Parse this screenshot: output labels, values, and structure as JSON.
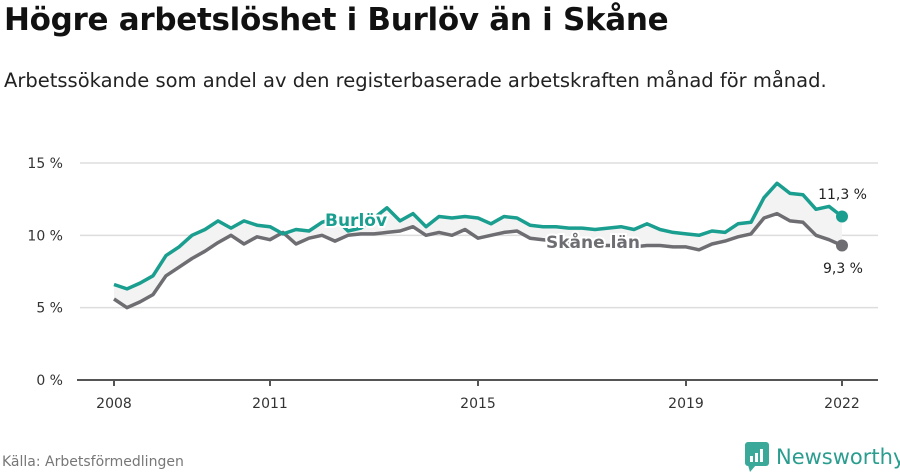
{
  "header": {
    "title": "Högre arbetslöshet i Burlöv än i Skåne",
    "subtitle": "Arbetssökande som andel av den registerbaserade arbetskraften månad för månad."
  },
  "footer": {
    "source": "Källa: Arbetsförmedlingen",
    "brand": "Newsworthy",
    "brand_icon": "bar-chart-speech-bubble-icon"
  },
  "colors": {
    "burlov": "#1a9e8f",
    "skane": "#6e6d72",
    "grid": "#dddddd",
    "axis": "#555555",
    "fill": "#f3f3f3"
  },
  "chart_data": {
    "type": "line",
    "title": "Högre arbetslöshet i Burlöv än i Skåne",
    "subtitle": "Arbetssökande som andel av den registerbaserade arbetskraften månad för månad.",
    "xlabel": "",
    "ylabel": "",
    "ylim": [
      0,
      15
    ],
    "xlim": [
      2008.0,
      2022.3
    ],
    "y_ticks": [
      "0 %",
      "5 %",
      "10 %",
      "15 %"
    ],
    "x_ticks": [
      "2008",
      "2011",
      "2015",
      "2019",
      "2022"
    ],
    "grid": "horizontal",
    "legend": "inline labels",
    "x": [
      2008.0,
      2008.25,
      2008.5,
      2008.75,
      2009.0,
      2009.25,
      2009.5,
      2009.75,
      2010.0,
      2010.25,
      2010.5,
      2010.75,
      2011.0,
      2011.25,
      2011.5,
      2011.75,
      2012.0,
      2012.25,
      2012.5,
      2012.75,
      2013.0,
      2013.25,
      2013.5,
      2013.75,
      2014.0,
      2014.25,
      2014.5,
      2014.75,
      2015.0,
      2015.25,
      2015.5,
      2015.75,
      2016.0,
      2016.25,
      2016.5,
      2016.75,
      2017.0,
      2017.25,
      2017.5,
      2017.75,
      2018.0,
      2018.25,
      2018.5,
      2018.75,
      2019.0,
      2019.25,
      2019.5,
      2019.75,
      2020.0,
      2020.25,
      2020.5,
      2020.75,
      2021.0,
      2021.25,
      2021.5,
      2021.75,
      2022.0
    ],
    "series": [
      {
        "name": "Burlöv",
        "values": [
          6.6,
          6.3,
          6.7,
          7.2,
          8.6,
          9.2,
          10.0,
          10.4,
          11.0,
          10.5,
          11.0,
          10.7,
          10.6,
          10.1,
          10.4,
          10.3,
          10.9,
          11.2,
          10.3,
          10.5,
          11.2,
          11.9,
          11.0,
          11.5,
          10.6,
          11.3,
          11.2,
          11.3,
          11.2,
          10.8,
          11.3,
          11.2,
          10.7,
          10.6,
          10.6,
          10.5,
          10.5,
          10.4,
          10.5,
          10.6,
          10.4,
          10.8,
          10.4,
          10.2,
          10.1,
          10.0,
          10.3,
          10.2,
          10.8,
          10.9,
          12.6,
          13.6,
          12.9,
          12.8,
          11.8,
          12.0,
          11.3
        ]
      },
      {
        "name": "Skåne län",
        "values": [
          5.6,
          5.0,
          5.4,
          5.9,
          7.2,
          7.8,
          8.4,
          8.9,
          9.5,
          10.0,
          9.4,
          9.9,
          9.7,
          10.2,
          9.4,
          9.8,
          10.0,
          9.6,
          10.0,
          10.1,
          10.1,
          10.2,
          10.3,
          10.6,
          10.0,
          10.2,
          10.0,
          10.4,
          9.8,
          10.0,
          10.2,
          10.3,
          9.8,
          9.7,
          9.6,
          9.5,
          9.4,
          9.3,
          9.3,
          9.3,
          9.2,
          9.3,
          9.3,
          9.2,
          9.2,
          9.0,
          9.4,
          9.6,
          9.9,
          10.1,
          11.2,
          11.5,
          11.0,
          10.9,
          10.0,
          9.7,
          9.3
        ]
      }
    ],
    "annotations": [
      {
        "text": "Burlöv",
        "series": "Burlöv"
      },
      {
        "text": "Skåne län",
        "series": "Skåne län"
      },
      {
        "text": "11,3 %",
        "series": "Burlöv",
        "x": 2022.0,
        "y": 11.3
      },
      {
        "text": "9,3 %",
        "series": "Skåne län",
        "x": 2022.0,
        "y": 9.3
      }
    ]
  }
}
